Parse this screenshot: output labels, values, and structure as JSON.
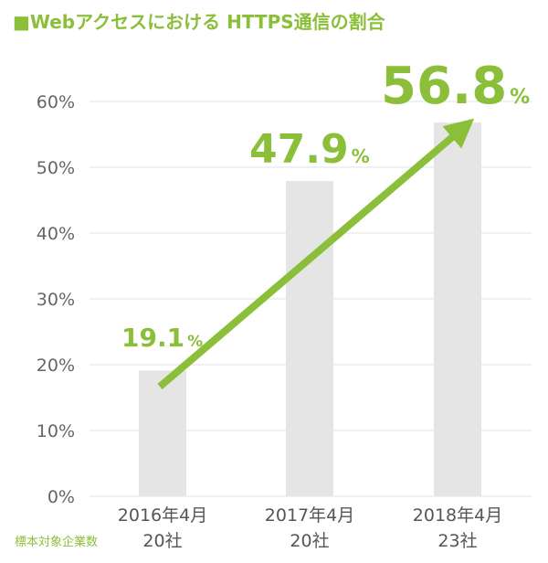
{
  "title": "■Webアクセスにおける HTTPS通信の割合",
  "footnote": "標本対象企業数",
  "colors": {
    "accent": "#8bbf3a",
    "bar": "#e5e5e5",
    "grid": "#e3e3e3"
  },
  "chart_data": {
    "type": "bar",
    "categories": [
      "2016年4月",
      "2017年4月",
      "2018年4月"
    ],
    "sample_sizes": [
      "20社",
      "20社",
      "23社"
    ],
    "values": [
      19.1,
      47.9,
      56.8
    ],
    "value_labels": [
      {
        "number": "19.1",
        "unit": "%"
      },
      {
        "number": "47.9",
        "unit": "%"
      },
      {
        "number": "56.8",
        "unit": "%"
      }
    ],
    "yticks": [
      "0%",
      "10%",
      "20%",
      "30%",
      "40%",
      "50%",
      "60%"
    ],
    "ylim": [
      0,
      60
    ],
    "grid": true,
    "annotations": [
      "upward trend arrow"
    ]
  }
}
